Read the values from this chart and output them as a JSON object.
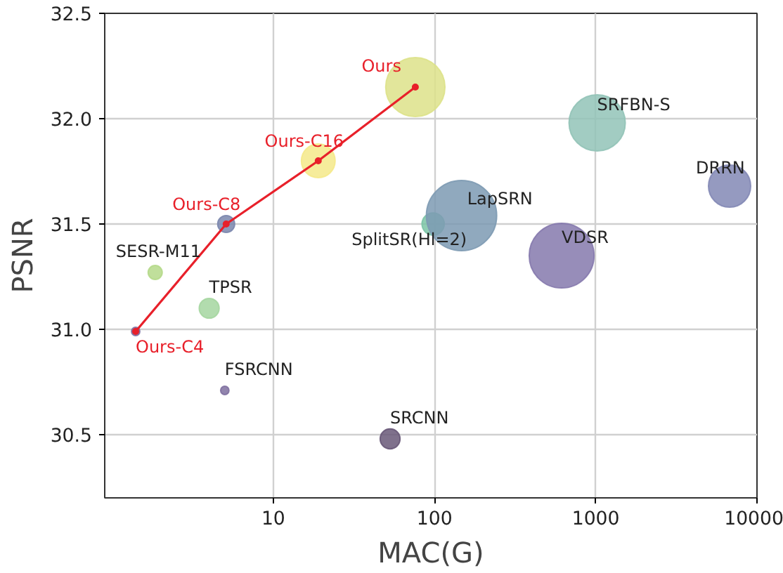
{
  "chart_data": {
    "type": "bubble",
    "xlabel": "MAC(G)",
    "ylabel": "PSNR",
    "log": "x",
    "grid": true,
    "xlim": [
      0.9,
      10000
    ],
    "xticks": [
      10,
      100,
      1000,
      10000
    ],
    "ylim": [
      30.2,
      32.5
    ],
    "yticks": [
      30.5,
      {
        "value": 31,
        "label": "31.0"
      },
      31.5,
      {
        "value": 32,
        "label": "32.0"
      },
      32.5
    ],
    "series": [
      {
        "x": [
          76,
          19,
          5.1,
          1.4,
          1.85,
          4.0,
          5.0,
          53,
          98,
          147,
          614,
          1020,
          6760
        ],
        "values": [
          32.15,
          31.8,
          31.5,
          30.99,
          31.27,
          31.1,
          30.71,
          30.48,
          31.5,
          31.54,
          31.35,
          31.98,
          31.68
        ],
        "sizes": [
          0.71,
          0.23,
          0.058,
          0.014,
          0.04,
          0.08,
          0.014,
          0.08,
          0.1,
          1,
          0.85,
          0.64,
          0.36
        ],
        "colors": [
          "#dde28a",
          "#f5e98a",
          "#7a86ad",
          "#7f70a0",
          "#b5d98a",
          "#a5d6a0",
          "#7f70a0",
          "#685878",
          "#7cc4a6",
          "#7d9ab3",
          "#8579ad",
          "#92c3b7",
          "#8388b5"
        ]
      },
      {
        "type": "line",
        "x": [
          1.4,
          5.1,
          19,
          76
        ],
        "values": [
          30.99,
          31.5,
          31.8,
          32.15
        ],
        "color": "#e8202a",
        "marker": "circle"
      }
    ],
    "annotations": [
      {
        "text": "Ours",
        "x": 76,
        "y": 32.15
      },
      {
        "text": "Ours-C16",
        "x": 19,
        "y": 31.8
      },
      {
        "text": "Ours-C8",
        "x": 5.1,
        "y": 31.5
      },
      {
        "text": "Ours-C4",
        "x": 1.4,
        "y": 30.99
      },
      {
        "text": "SESR-M11",
        "x": 1.85,
        "y": 31.27
      },
      {
        "text": "TPSR",
        "x": 4.0,
        "y": 31.1
      },
      {
        "text": "FSRCNN",
        "x": 5.0,
        "y": 30.71
      },
      {
        "text": "SRCNN",
        "x": 53,
        "y": 30.48
      },
      {
        "text": "SplitSR(Hl=2)",
        "x": 98,
        "y": 31.5
      },
      {
        "text": "LapSRN",
        "x": 147,
        "y": 31.54
      },
      {
        "text": "VDSR",
        "x": 614,
        "y": 31.35
      },
      {
        "text": "SRFBN-S",
        "x": 1020,
        "y": 31.98
      },
      {
        "text": "DRRN",
        "x": 6760,
        "y": 31.68
      }
    ]
  }
}
